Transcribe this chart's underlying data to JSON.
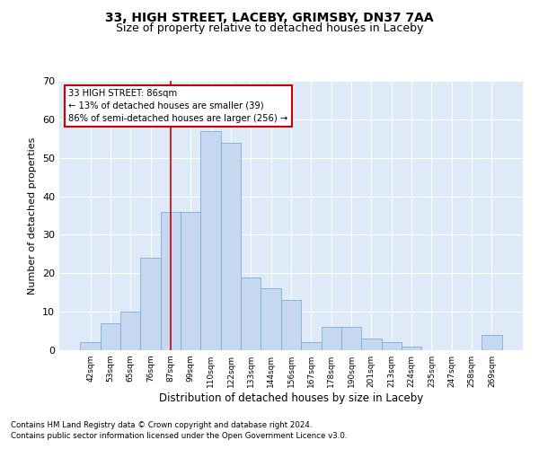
{
  "title1": "33, HIGH STREET, LACEBY, GRIMSBY, DN37 7AA",
  "title2": "Size of property relative to detached houses in Laceby",
  "xlabel": "Distribution of detached houses by size in Laceby",
  "ylabel": "Number of detached properties",
  "footer1": "Contains HM Land Registry data © Crown copyright and database right 2024.",
  "footer2": "Contains public sector information licensed under the Open Government Licence v3.0.",
  "bar_labels": [
    "42sqm",
    "53sqm",
    "65sqm",
    "76sqm",
    "87sqm",
    "99sqm",
    "110sqm",
    "122sqm",
    "133sqm",
    "144sqm",
    "156sqm",
    "167sqm",
    "178sqm",
    "190sqm",
    "201sqm",
    "213sqm",
    "224sqm",
    "235sqm",
    "247sqm",
    "258sqm",
    "269sqm"
  ],
  "bar_values": [
    2,
    7,
    10,
    24,
    36,
    36,
    57,
    54,
    19,
    16,
    13,
    2,
    6,
    6,
    3,
    2,
    1,
    0,
    0,
    0,
    4
  ],
  "bar_color": "#c5d8f0",
  "bar_edge_color": "#7bafd4",
  "annotation_box_color": "#ffffff",
  "annotation_border_color": "#cc0000",
  "annotation_text1": "33 HIGH STREET: 86sqm",
  "annotation_text2": "← 13% of detached houses are smaller (39)",
  "annotation_text3": "86% of semi-detached houses are larger (256) →",
  "property_line_x": "87sqm",
  "property_line_color": "#cc0000",
  "ylim": [
    0,
    70
  ],
  "yticks": [
    0,
    10,
    20,
    30,
    40,
    50,
    60,
    70
  ],
  "background_color": "#deeaf8",
  "grid_color": "#ffffff",
  "title1_fontsize": 10,
  "title2_fontsize": 9
}
